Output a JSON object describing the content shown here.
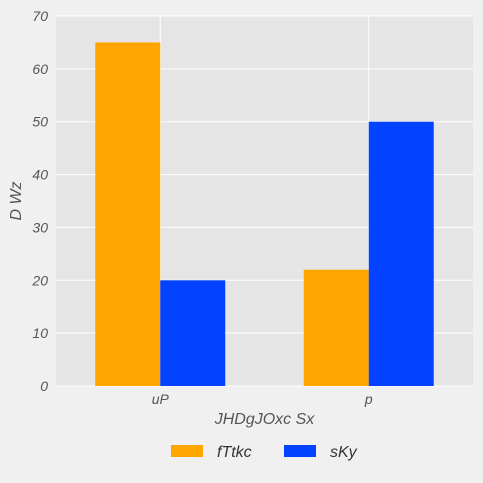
{
  "chart_data": {
    "type": "bar",
    "title": "",
    "xlabel": "JHDgJOxc Sx",
    "ylabel": "D Wz",
    "categories": [
      "uP",
      "p"
    ],
    "series": [
      {
        "name": "fTtkc",
        "values": [
          65,
          22
        ],
        "color": "#ffa500"
      },
      {
        "name": "sKy",
        "values": [
          20,
          50
        ],
        "color": "#0343ff"
      }
    ],
    "ylim": [
      0,
      70
    ],
    "yticks": [
      0,
      10,
      20,
      30,
      40,
      50,
      60,
      70
    ],
    "grid": true,
    "legend": "bottom-center",
    "colors": {
      "plot_background": "#e5e5e5",
      "page_background": "#f0f0f0",
      "grid": "#ffffff",
      "text": "#555555"
    }
  }
}
